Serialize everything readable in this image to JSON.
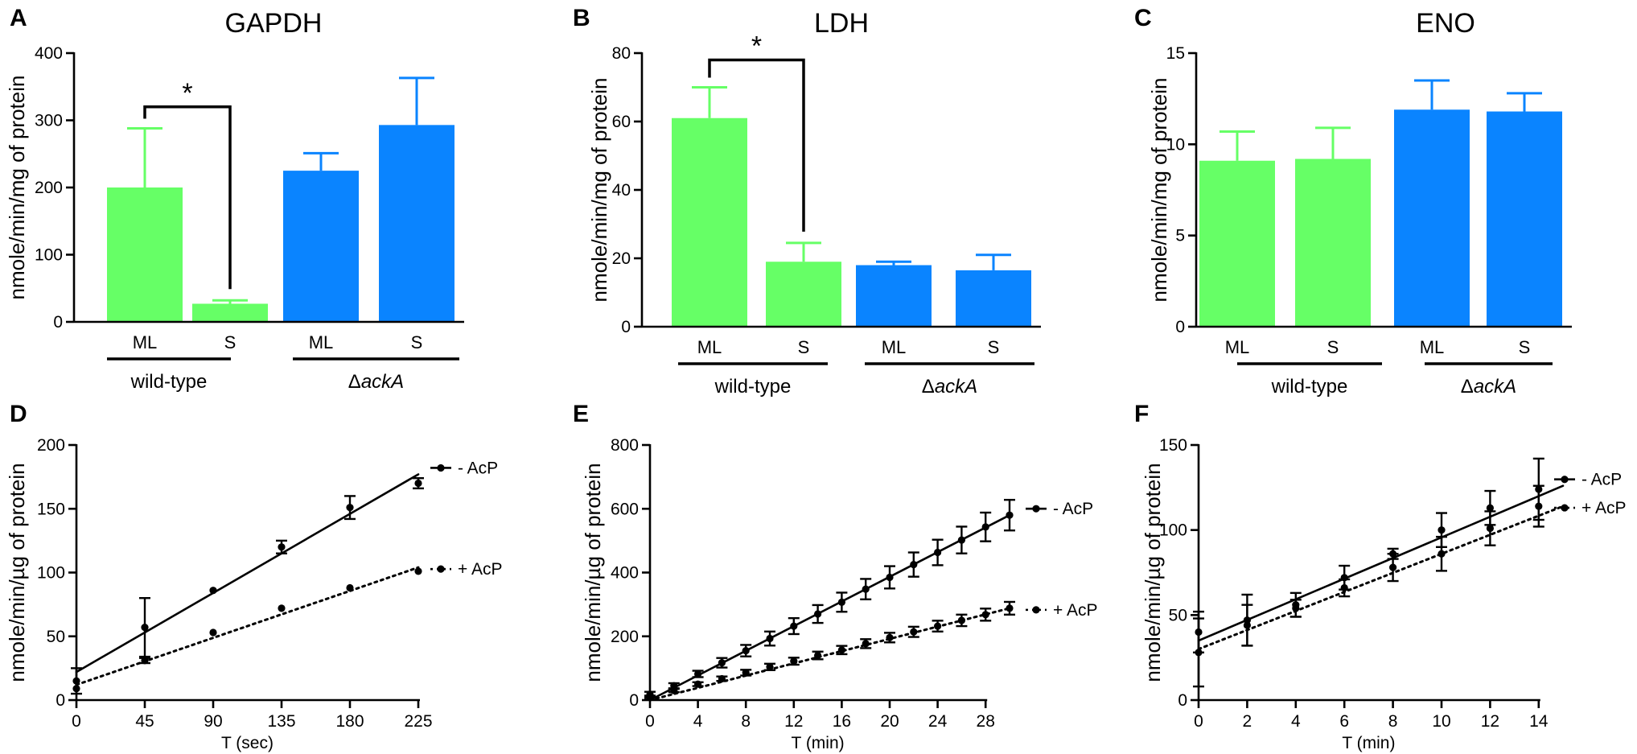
{
  "colors": {
    "wildtype": "#66FF66",
    "mutant": "#0A84FF",
    "ink": "#000000"
  },
  "chart_data": [
    {
      "panel": "A",
      "type": "bar",
      "title": "GAPDH",
      "ylabel": "nmole/min/mg of protein",
      "ylim": [
        0,
        400
      ],
      "yticks": [
        "0",
        "100",
        "200",
        "300",
        "400"
      ],
      "categories": [
        "ML",
        "S",
        "ML",
        "S"
      ],
      "groups": [
        {
          "name": "wild-type",
          "prefix": ""
        },
        {
          "name": "ackA",
          "prefix": "Δ"
        }
      ],
      "values": [
        200,
        27,
        225,
        293
      ],
      "errors": [
        88,
        5,
        26,
        70
      ],
      "significance": {
        "label": "*",
        "pair": [
          0,
          1
        ],
        "y": 320
      }
    },
    {
      "panel": "B",
      "type": "bar",
      "title": "LDH",
      "ylabel": "nmole/min/mg of protein",
      "ylim": [
        0,
        80
      ],
      "yticks": [
        "0",
        "20",
        "40",
        "60",
        "80"
      ],
      "categories": [
        "ML",
        "S",
        "ML",
        "S"
      ],
      "groups": [
        {
          "name": "wild-type",
          "prefix": ""
        },
        {
          "name": "ackA",
          "prefix": "Δ"
        }
      ],
      "values": [
        61,
        19,
        18,
        16.5
      ],
      "errors": [
        9,
        5.5,
        1,
        4.5
      ],
      "significance": {
        "label": "*",
        "pair": [
          0,
          1
        ],
        "y": 78
      }
    },
    {
      "panel": "C",
      "type": "bar",
      "title": "ENO",
      "ylabel": "nmole/min/mg of protein",
      "ylim": [
        0,
        15
      ],
      "yticks": [
        "0",
        "5",
        "10",
        "15"
      ],
      "categories": [
        "ML",
        "S",
        "ML",
        "S"
      ],
      "groups": [
        {
          "name": "wild-type",
          "prefix": ""
        },
        {
          "name": "ackA",
          "prefix": "Δ"
        }
      ],
      "values": [
        9.1,
        9.2,
        11.9,
        11.8
      ],
      "errors": [
        1.6,
        1.7,
        1.6,
        1.0
      ]
    },
    {
      "panel": "D",
      "type": "line",
      "xlabel": "T (sec)",
      "ylabel": "nmole/min/µg of protein",
      "xlim": [
        0,
        225
      ],
      "ylim": [
        0,
        200
      ],
      "xticks": [
        0,
        45,
        90,
        135,
        180,
        225
      ],
      "yticks": [
        0,
        50,
        100,
        150,
        200
      ],
      "series": [
        {
          "name": "- AcP",
          "style": "solid",
          "fit": [
            22,
            177
          ],
          "x": [
            0,
            45,
            90,
            135,
            180,
            225
          ],
          "y": [
            15,
            57,
            86,
            120,
            151,
            170
          ],
          "err": [
            10,
            23,
            0,
            5,
            9,
            4
          ]
        },
        {
          "name": "+ AcP",
          "style": "dotted",
          "fit": [
            12,
            104
          ],
          "x": [
            0,
            45,
            90,
            135,
            180,
            225
          ],
          "y": [
            9,
            31,
            53,
            72,
            88,
            101
          ],
          "err": [
            0,
            2,
            0,
            0,
            0,
            0
          ]
        }
      ]
    },
    {
      "panel": "E",
      "type": "line",
      "xlabel": "T (min)",
      "ylabel": "nmole/min/µg of protein",
      "xlim": [
        0,
        30
      ],
      "ylim": [
        0,
        800
      ],
      "xticks": [
        0,
        4,
        8,
        12,
        16,
        20,
        24,
        28
      ],
      "yticks": [
        0,
        200,
        400,
        600,
        800
      ],
      "series": [
        {
          "name": "- AcP",
          "style": "solid",
          "fit": [
            0,
            580
          ],
          "x": [
            0,
            2,
            4,
            6,
            8,
            10,
            12,
            14,
            16,
            18,
            20,
            22,
            24,
            26,
            28,
            30
          ],
          "y": [
            18,
            45,
            82,
            117,
            155,
            193,
            232,
            270,
            307,
            348,
            385,
            425,
            463,
            502,
            543,
            580
          ],
          "err": [
            8,
            8,
            10,
            15,
            18,
            22,
            25,
            28,
            30,
            32,
            35,
            38,
            40,
            42,
            45,
            48
          ]
        },
        {
          "name": "+ AcP",
          "style": "dotted",
          "fit": [
            0,
            288
          ],
          "x": [
            0,
            2,
            4,
            6,
            8,
            10,
            12,
            14,
            16,
            18,
            20,
            22,
            24,
            26,
            28,
            30
          ],
          "y": [
            10,
            30,
            50,
            67,
            86,
            104,
            122,
            140,
            157,
            177,
            196,
            214,
            232,
            250,
            268,
            288
          ],
          "err": [
            4,
            5,
            6,
            7,
            9,
            10,
            11,
            12,
            13,
            14,
            15,
            16,
            17,
            18,
            19,
            20
          ]
        }
      ]
    },
    {
      "panel": "F",
      "type": "line",
      "xlabel": "T (min)",
      "ylabel": "nmole/min/µg of protein",
      "xlim": [
        0,
        15
      ],
      "ylim": [
        0,
        150
      ],
      "xticks": [
        0,
        2,
        4,
        6,
        8,
        10,
        12,
        14
      ],
      "yticks": [
        0,
        50,
        100,
        150
      ],
      "series": [
        {
          "name": "- AcP",
          "style": "solid",
          "fit": [
            35,
            126
          ],
          "x": [
            0,
            2,
            4,
            6,
            8,
            10,
            12,
            14
          ],
          "y": [
            40,
            47,
            56,
            72,
            86,
            100,
            113,
            124
          ],
          "err": [
            12,
            15,
            7,
            7,
            3,
            10,
            10,
            18
          ]
        },
        {
          "name": "+ AcP",
          "style": "dotted",
          "fit": [
            30,
            114
          ],
          "x": [
            0,
            2,
            4,
            6,
            8,
            10,
            12,
            14
          ],
          "y": [
            28,
            44,
            54,
            66,
            78,
            86,
            101,
            114
          ],
          "err": [
            20,
            12,
            5,
            5,
            8,
            10,
            10,
            12
          ]
        }
      ]
    }
  ]
}
